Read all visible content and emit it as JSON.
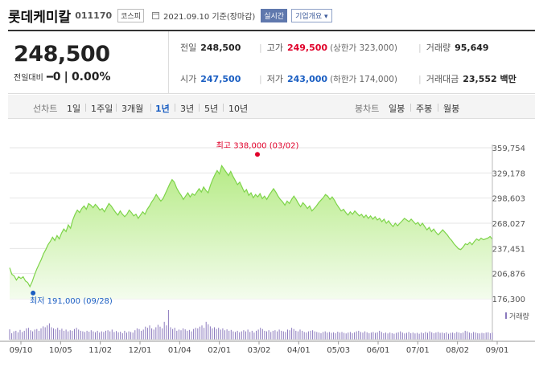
{
  "header": {
    "name": "롯데케미칼",
    "code": "011170",
    "market": "코스피",
    "date_text": "2021.09.10 기준(장마감)",
    "realtime_label": "실시간",
    "company_button": "기업개요 ▾"
  },
  "quote": {
    "price": "248,500",
    "change_label": "전일대비",
    "change_value": "0",
    "change_pct": "0.00%",
    "prev_close_label": "전일",
    "prev_close": "248,500",
    "high_label": "고가",
    "high": "249,500",
    "upper_limit": "(상한가 323,000)",
    "volume_label": "거래량",
    "volume": "95,649",
    "open_label": "시가",
    "open": "247,500",
    "low_label": "저가",
    "low": "243,000",
    "lower_limit": "(하한가 174,000)",
    "amount_label": "거래대금",
    "amount": "23,552 백만"
  },
  "tabs": {
    "line_label": "선차트",
    "line_periods": [
      "1일",
      "1주일",
      "3개월",
      "1년",
      "3년",
      "5년",
      "10년"
    ],
    "line_active": "1년",
    "candle_label": "봉차트",
    "candle_periods": [
      "일봉",
      "주봉",
      "월봉"
    ]
  },
  "colors": {
    "line": "#7ed44a",
    "area_top": "#b6eb86",
    "area_bottom": "#f4fcee",
    "volume": "#8a79bd",
    "up": "#e0002a",
    "down": "#1a5ec2"
  },
  "chart_data": {
    "type": "area",
    "ylim": [
      176300,
      359754
    ],
    "yticks": [
      359754,
      329178,
      298603,
      268027,
      237451,
      206876,
      176300
    ],
    "ytick_labels": [
      "359,754",
      "329,178",
      "298,603",
      "268,027",
      "237,451",
      "206,876",
      "176,300"
    ],
    "xlabels": [
      "09/10",
      "10/05",
      "11/02",
      "12/01",
      "01/04",
      "02/01",
      "03/02",
      "04/01",
      "05/03",
      "06/01",
      "07/01",
      "08/02",
      "09/01"
    ],
    "high_label": "최고 338,000 (03/02)",
    "high_value": 338000,
    "high_index": 0.5133,
    "low_label": "최저 191,000 (09/28)",
    "low_value": 191000,
    "low_index": 0.0485,
    "series": [
      {
        "values": [
          214000,
          206000,
          204000,
          199000,
          203000,
          201000,
          203000,
          198000,
          196000,
          191000,
          197000,
          205000,
          212000,
          218000,
          224000,
          231000,
          236000,
          242000,
          246000,
          251000,
          247000,
          253000,
          249000,
          256000,
          261000,
          258000,
          266000,
          262000,
          272000,
          279000,
          284000,
          281000,
          286000,
          289000,
          285000,
          292000,
          290000,
          287000,
          291000,
          288000,
          284000,
          286000,
          282000,
          287000,
          292000,
          289000,
          285000,
          281000,
          278000,
          283000,
          279000,
          276000,
          279000,
          284000,
          281000,
          277000,
          279000,
          274000,
          278000,
          282000,
          279000,
          285000,
          289000,
          294000,
          298000,
          303000,
          299000,
          295000,
          298000,
          304000,
          310000,
          316000,
          321000,
          318000,
          311000,
          306000,
          302000,
          297000,
          301000,
          305000,
          300000,
          304000,
          302000,
          306000,
          310000,
          306000,
          312000,
          308000,
          305000,
          314000,
          321000,
          327000,
          332000,
          328000,
          338000,
          334000,
          330000,
          326000,
          331000,
          325000,
          320000,
          315000,
          318000,
          312000,
          306000,
          309000,
          302000,
          305000,
          299000,
          303000,
          300000,
          304000,
          298000,
          301000,
          297000,
          302000,
          306000,
          310000,
          306000,
          301000,
          297000,
          294000,
          290000,
          295000,
          292000,
          297000,
          301000,
          297000,
          292000,
          288000,
          293000,
          290000,
          286000,
          289000,
          283000,
          286000,
          289000,
          293000,
          296000,
          299000,
          303000,
          301000,
          297000,
          300000,
          296000,
          291000,
          287000,
          283000,
          285000,
          281000,
          278000,
          282000,
          279000,
          283000,
          280000,
          277000,
          279000,
          275000,
          278000,
          274000,
          277000,
          273000,
          276000,
          272000,
          274000,
          270000,
          273000,
          268000,
          271000,
          267000,
          264000,
          268000,
          265000,
          268000,
          271000,
          274000,
          272000,
          270000,
          273000,
          270000,
          267000,
          269000,
          265000,
          268000,
          264000,
          260000,
          263000,
          258000,
          261000,
          257000,
          254000,
          257000,
          260000,
          257000,
          254000,
          250000,
          247000,
          243000,
          240000,
          237000,
          236000,
          239000,
          243000,
          242000,
          245000,
          242000,
          246000,
          249000,
          247000,
          250000,
          248000,
          249000,
          250000,
          252000,
          248500
        ]
      }
    ],
    "volume_label": "거래량",
    "volume": [
      35,
      22,
      28,
      30,
      25,
      33,
      26,
      30,
      38,
      40,
      32,
      28,
      34,
      36,
      30,
      38,
      45,
      42,
      48,
      55,
      42,
      38,
      35,
      40,
      33,
      37,
      30,
      34,
      28,
      32,
      30,
      36,
      40,
      34,
      30,
      28,
      26,
      30,
      27,
      32,
      28,
      25,
      30,
      24,
      28,
      26,
      30,
      32,
      28,
      34,
      26,
      29,
      25,
      27,
      22,
      30,
      24,
      28,
      26,
      24,
      32,
      38,
      36,
      30,
      34,
      44,
      40,
      48,
      38,
      34,
      42,
      50,
      44,
      38,
      60,
      48,
      100,
      42,
      36,
      40,
      30,
      34,
      32,
      38,
      35,
      30,
      33,
      28,
      36,
      40,
      38,
      44,
      48,
      40,
      60,
      52,
      45,
      38,
      42,
      36,
      40,
      34,
      38,
      32,
      35,
      30,
      33,
      28,
      26,
      30,
      25,
      28,
      32,
      28,
      34,
      26,
      30,
      24,
      30,
      34,
      40,
      36,
      30,
      28,
      32,
      26,
      30,
      32,
      28,
      34,
      30,
      28,
      26,
      34,
      32,
      40,
      36,
      30,
      28,
      34,
      30,
      26,
      24,
      28,
      30,
      32,
      28,
      26,
      24,
      22,
      26,
      28,
      24,
      26,
      23,
      25,
      22,
      27,
      24,
      26,
      23,
      21,
      24,
      26,
      22,
      25,
      28,
      30,
      26,
      24,
      28,
      25,
      22,
      24,
      26,
      23,
      25,
      30,
      26,
      22,
      24,
      21,
      24,
      22,
      20,
      23,
      25,
      28,
      24,
      21,
      23,
      26,
      22,
      24,
      21,
      23,
      20,
      24,
      22,
      26,
      23,
      28,
      25,
      22,
      24,
      26,
      23,
      24,
      22,
      25,
      20,
      23,
      24,
      22,
      26,
      24,
      22,
      24,
      30,
      28,
      24,
      22,
      26,
      24,
      22,
      21,
      23,
      22,
      24,
      25,
      22,
      24
    ]
  }
}
